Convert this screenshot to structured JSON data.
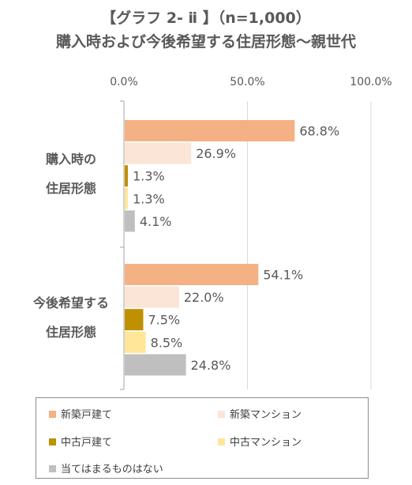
{
  "chart_data": {
    "type": "bar",
    "orientation": "horizontal",
    "title": "【グラフ 2- ⅱ 】（n=1,000）",
    "subtitle": "購入時および今後希望する住居形態～親世代",
    "xlim": [
      0,
      100
    ],
    "x_ticks": [
      "0.0%",
      "50.0%",
      "100.0%"
    ],
    "grid": true,
    "legend_position": "bottom",
    "categories": [
      {
        "label_lines": [
          "購入時の",
          "住居形態"
        ]
      },
      {
        "label_lines": [
          "今後希望する",
          "住居形態"
        ]
      }
    ],
    "series": [
      {
        "name": "新築戸建て",
        "color": "#f4b183",
        "values": [
          68.8,
          54.1
        ],
        "labels": [
          "68.8%",
          "54.1%"
        ]
      },
      {
        "name": "新築マンション",
        "color": "#fbe5d6",
        "values": [
          26.9,
          22.0
        ],
        "labels": [
          "26.9%",
          "22.0%"
        ]
      },
      {
        "name": "中古戸建て",
        "color": "#bf9000",
        "values": [
          1.3,
          7.5
        ],
        "labels": [
          "1.3%",
          "7.5%"
        ]
      },
      {
        "name": "中古マンション",
        "color": "#ffe699",
        "values": [
          1.3,
          8.5
        ],
        "labels": [
          "1.3%",
          "8.5%"
        ]
      },
      {
        "name": "当てはまるものはない",
        "color": "#bfbfbf",
        "values": [
          4.1,
          24.8
        ],
        "labels": [
          "4.1%",
          "24.8%"
        ]
      }
    ]
  }
}
